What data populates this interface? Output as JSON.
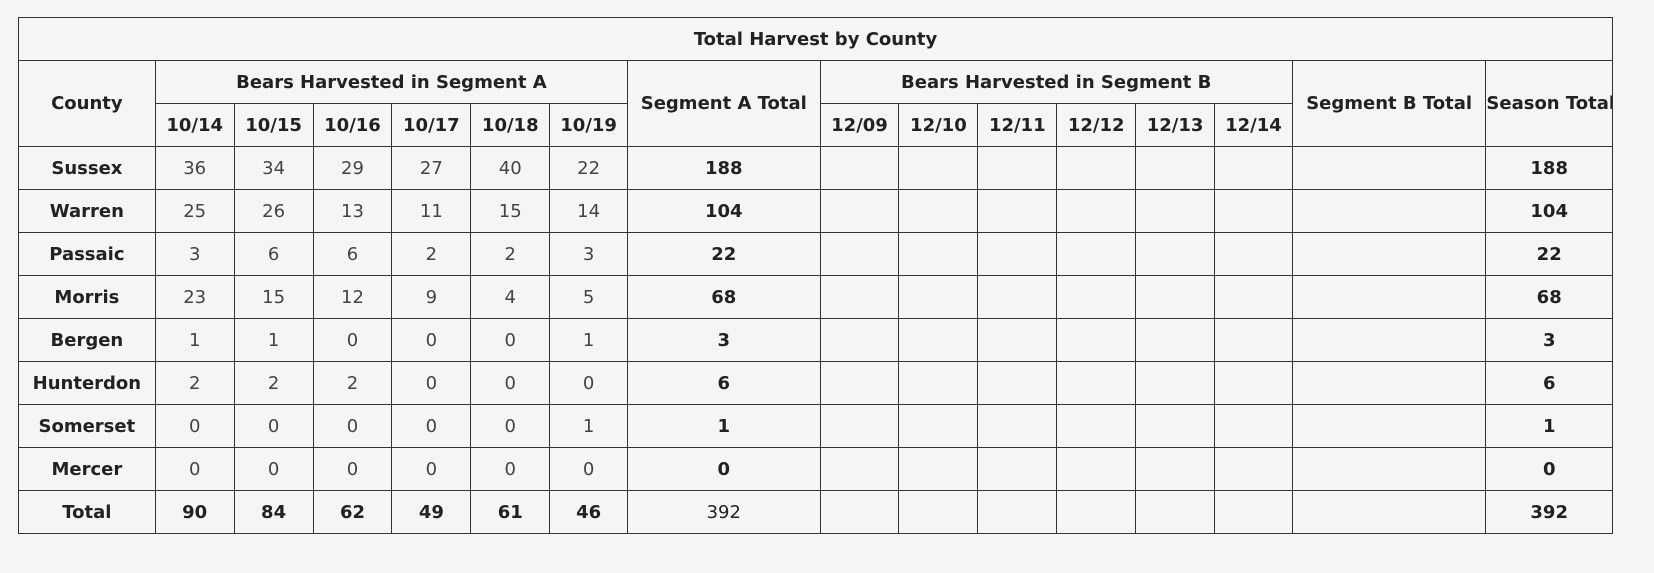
{
  "table": {
    "caption": "Total Harvest by County",
    "headers": {
      "county": "County",
      "segment_a_group": "Bears Harvested in Segment A",
      "segment_a_total": "Segment A Total",
      "segment_b_group": "Bears Harvested in Segment B",
      "segment_b_total": "Segment B Total",
      "season_total": "Season Total",
      "segment_a_dates": [
        "10/14",
        "10/15",
        "10/16",
        "10/17",
        "10/18",
        "10/19"
      ],
      "segment_b_dates": [
        "12/09",
        "12/10",
        "12/11",
        "12/12",
        "12/13",
        "12/14"
      ]
    },
    "rows": [
      {
        "county": "Sussex",
        "a": [
          "36",
          "34",
          "29",
          "27",
          "40",
          "22"
        ],
        "a_total": "188",
        "b": [
          "",
          "",
          "",
          "",
          "",
          ""
        ],
        "b_total": "",
        "season_total": "188"
      },
      {
        "county": "Warren",
        "a": [
          "25",
          "26",
          "13",
          "11",
          "15",
          "14"
        ],
        "a_total": "104",
        "b": [
          "",
          "",
          "",
          "",
          "",
          ""
        ],
        "b_total": "",
        "season_total": "104"
      },
      {
        "county": "Passaic",
        "a": [
          "3",
          "6",
          "6",
          "2",
          "2",
          "3"
        ],
        "a_total": "22",
        "b": [
          "",
          "",
          "",
          "",
          "",
          ""
        ],
        "b_total": "",
        "season_total": "22"
      },
      {
        "county": "Morris",
        "a": [
          "23",
          "15",
          "12",
          "9",
          "4",
          "5"
        ],
        "a_total": "68",
        "b": [
          "",
          "",
          "",
          "",
          "",
          ""
        ],
        "b_total": "",
        "season_total": "68"
      },
      {
        "county": "Bergen",
        "a": [
          "1",
          "1",
          "0",
          "0",
          "0",
          "1"
        ],
        "a_total": "3",
        "b": [
          "",
          "",
          "",
          "",
          "",
          ""
        ],
        "b_total": "",
        "season_total": "3"
      },
      {
        "county": "Hunterdon",
        "a": [
          "2",
          "2",
          "2",
          "0",
          "0",
          "0"
        ],
        "a_total": "6",
        "b": [
          "",
          "",
          "",
          "",
          "",
          ""
        ],
        "b_total": "",
        "season_total": "6"
      },
      {
        "county": "Somerset",
        "a": [
          "0",
          "0",
          "0",
          "0",
          "0",
          "1"
        ],
        "a_total": "1",
        "b": [
          "",
          "",
          "",
          "",
          "",
          ""
        ],
        "b_total": "",
        "season_total": "1"
      },
      {
        "county": "Mercer",
        "a": [
          "0",
          "0",
          "0",
          "0",
          "0",
          "0"
        ],
        "a_total": "0",
        "b": [
          "",
          "",
          "",
          "",
          "",
          ""
        ],
        "b_total": "",
        "season_total": "0"
      }
    ],
    "total_row": {
      "label": "Total",
      "a": [
        "90",
        "84",
        "62",
        "49",
        "61",
        "46"
      ],
      "a_total": "392",
      "b": [
        "",
        "",
        "",
        "",
        "",
        ""
      ],
      "b_total": "",
      "season_total": "392"
    }
  }
}
